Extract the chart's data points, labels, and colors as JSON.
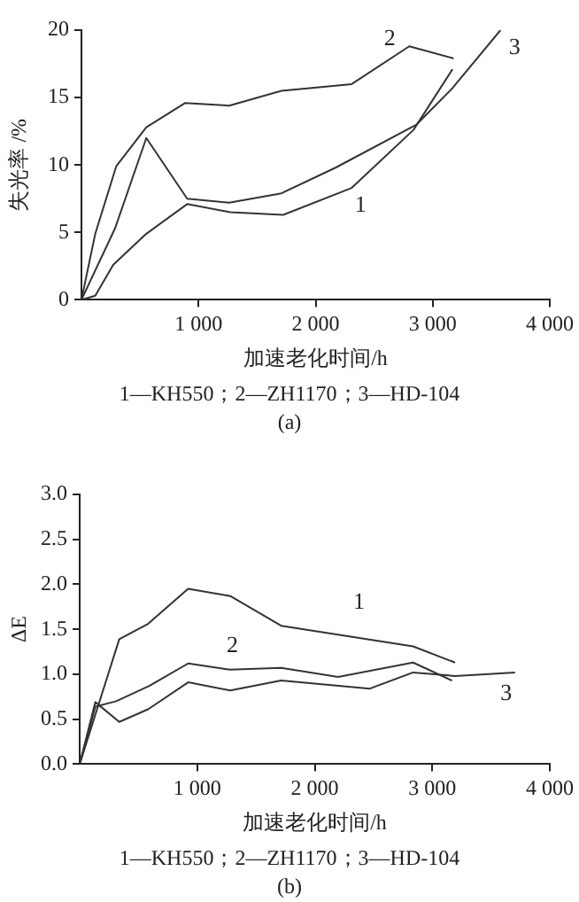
{
  "chart_data": [
    {
      "type": "line",
      "xlabel": "加速老化时间/h",
      "ylabel": "失光率 /%",
      "xlim": [
        0,
        4000
      ],
      "xticks": [
        {
          "value": 1000,
          "label": "1 000"
        },
        {
          "value": 2000,
          "label": "2 000"
        },
        {
          "value": 3000,
          "label": "3 000"
        },
        {
          "value": 4000,
          "label": "4 000"
        }
      ],
      "ylim": [
        0,
        20
      ],
      "yticks": [
        0,
        5,
        10,
        15,
        20
      ],
      "grid": false,
      "legend": false,
      "marker": "none",
      "line_style": "solid",
      "series": [
        {
          "name": "1",
          "color": "#333333",
          "x": [
            0,
            118,
            272,
            554,
            903,
            1272,
            1723,
            2308,
            2836,
            3169
          ],
          "values": [
            0,
            0.3,
            2.6,
            4.9,
            7.1,
            6.5,
            6.3,
            8.3,
            12.6,
            17.1
          ]
        },
        {
          "name": "2",
          "color": "#333333",
          "x": [
            0,
            118,
            297,
            554,
            887,
            1262,
            1708,
            2308,
            2800,
            3179
          ],
          "values": [
            0,
            4.9,
            9.9,
            12.8,
            14.6,
            14.4,
            15.5,
            16.0,
            18.8,
            17.9
          ]
        },
        {
          "name": "3",
          "color": "#333333",
          "x": [
            0,
            287,
            554,
            903,
            1262,
            1708,
            2170,
            2862,
            3169,
            3579
          ],
          "values": [
            0,
            5.3,
            12.0,
            7.5,
            7.2,
            7.9,
            9.8,
            13.0,
            15.7,
            20
          ]
        }
      ],
      "annotations": [
        "1—KH550；2—ZH1170；3—HD-104",
        "(a)"
      ]
    },
    {
      "type": "line",
      "xlabel": "加速老化时间/h",
      "ylabel": "ΔE",
      "xlim": [
        0,
        4000
      ],
      "xticks": [
        {
          "value": 1000,
          "label": "1 000"
        },
        {
          "value": 2000,
          "label": "2 000"
        },
        {
          "value": 3000,
          "label": "3 000"
        },
        {
          "value": 4000,
          "label": "4 000"
        }
      ],
      "ylim": [
        0,
        3
      ],
      "yticks": [
        {
          "value": 0,
          "label": "0.0"
        },
        {
          "value": 0.5,
          "label": "0.5"
        },
        {
          "value": 1,
          "label": "1.0"
        },
        {
          "value": 1.5,
          "label": "1.5"
        },
        {
          "value": 2,
          "label": "2.0"
        },
        {
          "value": 2.5,
          "label": "2.5"
        },
        {
          "value": 3,
          "label": "3.0"
        }
      ],
      "grid": false,
      "legend": false,
      "marker": "none",
      "line_style": "solid",
      "series": [
        {
          "name": "1",
          "color": "#333333",
          "x": [
            0,
            337,
            582,
            923,
            1281,
            1714,
            2837,
            3194
          ],
          "values": [
            0,
            1.39,
            1.56,
            1.95,
            1.87,
            1.54,
            1.31,
            1.13
          ]
        },
        {
          "name": "2",
          "color": "#333333",
          "x": [
            0,
            133,
            311,
            592,
            923,
            1281,
            1714,
            2199,
            2837,
            3168
          ],
          "values": [
            0,
            0.64,
            0.7,
            0.87,
            1.12,
            1.05,
            1.07,
            0.97,
            1.13,
            0.93
          ]
        },
        {
          "name": "3",
          "color": "#333333",
          "x": [
            0,
            133,
            337,
            582,
            923,
            1281,
            1714,
            2469,
            2837,
            3194,
            3704
          ],
          "values": [
            0,
            0.69,
            0.47,
            0.61,
            0.91,
            0.82,
            0.93,
            0.84,
            1.02,
            0.98,
            1.02
          ]
        }
      ],
      "annotations": [
        "1—KH550；2—ZH1170；3—HD-104",
        "(b)"
      ]
    }
  ]
}
